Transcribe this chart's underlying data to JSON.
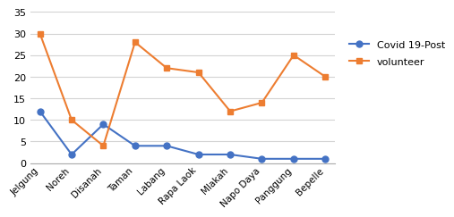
{
  "categories": [
    "Jelgung",
    "Noreh",
    "Disanah",
    "Taman",
    "Labang",
    "Rapa Laok",
    "Mlakah",
    "Napo Daya",
    "Panggung",
    "Bepelle"
  ],
  "covid_post": [
    12,
    2,
    9,
    4,
    4,
    2,
    2,
    1,
    1,
    1
  ],
  "volunteer": [
    30,
    10,
    4,
    28,
    22,
    21,
    12,
    14,
    25,
    20
  ],
  "covid_color": "#4472c4",
  "volunteer_color": "#ed7d31",
  "covid_label": "Covid 19-Post",
  "volunteer_label": "volunteer",
  "ylim": [
    0,
    35
  ],
  "yticks": [
    0,
    5,
    10,
    15,
    20,
    25,
    30,
    35
  ],
  "marker_covid": "o",
  "marker_volunteer": "s",
  "linewidth": 1.5,
  "markersize": 5,
  "grid_color": "#d3d3d3",
  "background_color": "#ffffff",
  "xlabel_fontsize": 7.5,
  "ylabel_fontsize": 8,
  "legend_fontsize": 8
}
